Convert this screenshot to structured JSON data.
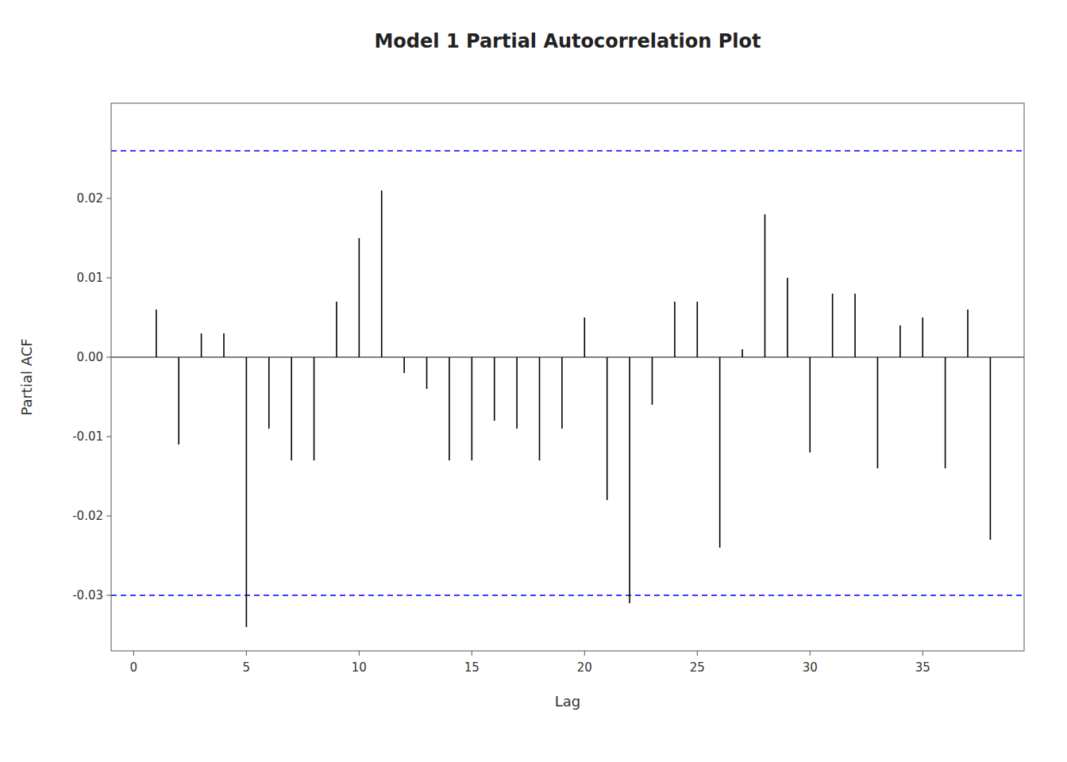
{
  "chart_data": {
    "type": "stem",
    "title": "Model 1 Partial Autocorrelation Plot",
    "xlabel": "Lag",
    "ylabel": "Partial ACF",
    "x": [
      1,
      2,
      3,
      4,
      5,
      6,
      7,
      8,
      9,
      10,
      11,
      12,
      13,
      14,
      15,
      16,
      17,
      18,
      19,
      20,
      21,
      22,
      23,
      24,
      25,
      26,
      27,
      28,
      29,
      30,
      31,
      32,
      33,
      34,
      35,
      36,
      37,
      38
    ],
    "series": [
      {
        "color": "#000000",
        "values": [
          0.006,
          -0.011,
          0.003,
          0.003,
          -0.034,
          -0.009,
          -0.013,
          -0.013,
          0.007,
          0.015,
          0.021,
          -0.002,
          -0.004,
          -0.013,
          -0.013,
          -0.008,
          -0.009,
          -0.013,
          -0.009,
          0.005,
          -0.018,
          -0.031,
          -0.006,
          0.007,
          0.007,
          -0.024,
          0.001,
          0.018,
          0.01,
          -0.012,
          0.008,
          0.008,
          -0.014,
          0.004,
          0.005,
          -0.014,
          0.006,
          -0.023
        ]
      }
    ],
    "conf_lines": {
      "values": [
        0.026,
        -0.03
      ],
      "color": "#0000ff",
      "line_style": "dashed"
    },
    "xlim": [
      -1,
      39.5
    ],
    "ylim": [
      -0.037,
      0.032
    ],
    "xticks": [
      0,
      5,
      10,
      15,
      20,
      25,
      30,
      35
    ],
    "yticks": [
      -0.03,
      -0.02,
      -0.01,
      {
        "value": 0,
        "label": "0.00"
      },
      0.01,
      0.02
    ],
    "grid": false
  }
}
